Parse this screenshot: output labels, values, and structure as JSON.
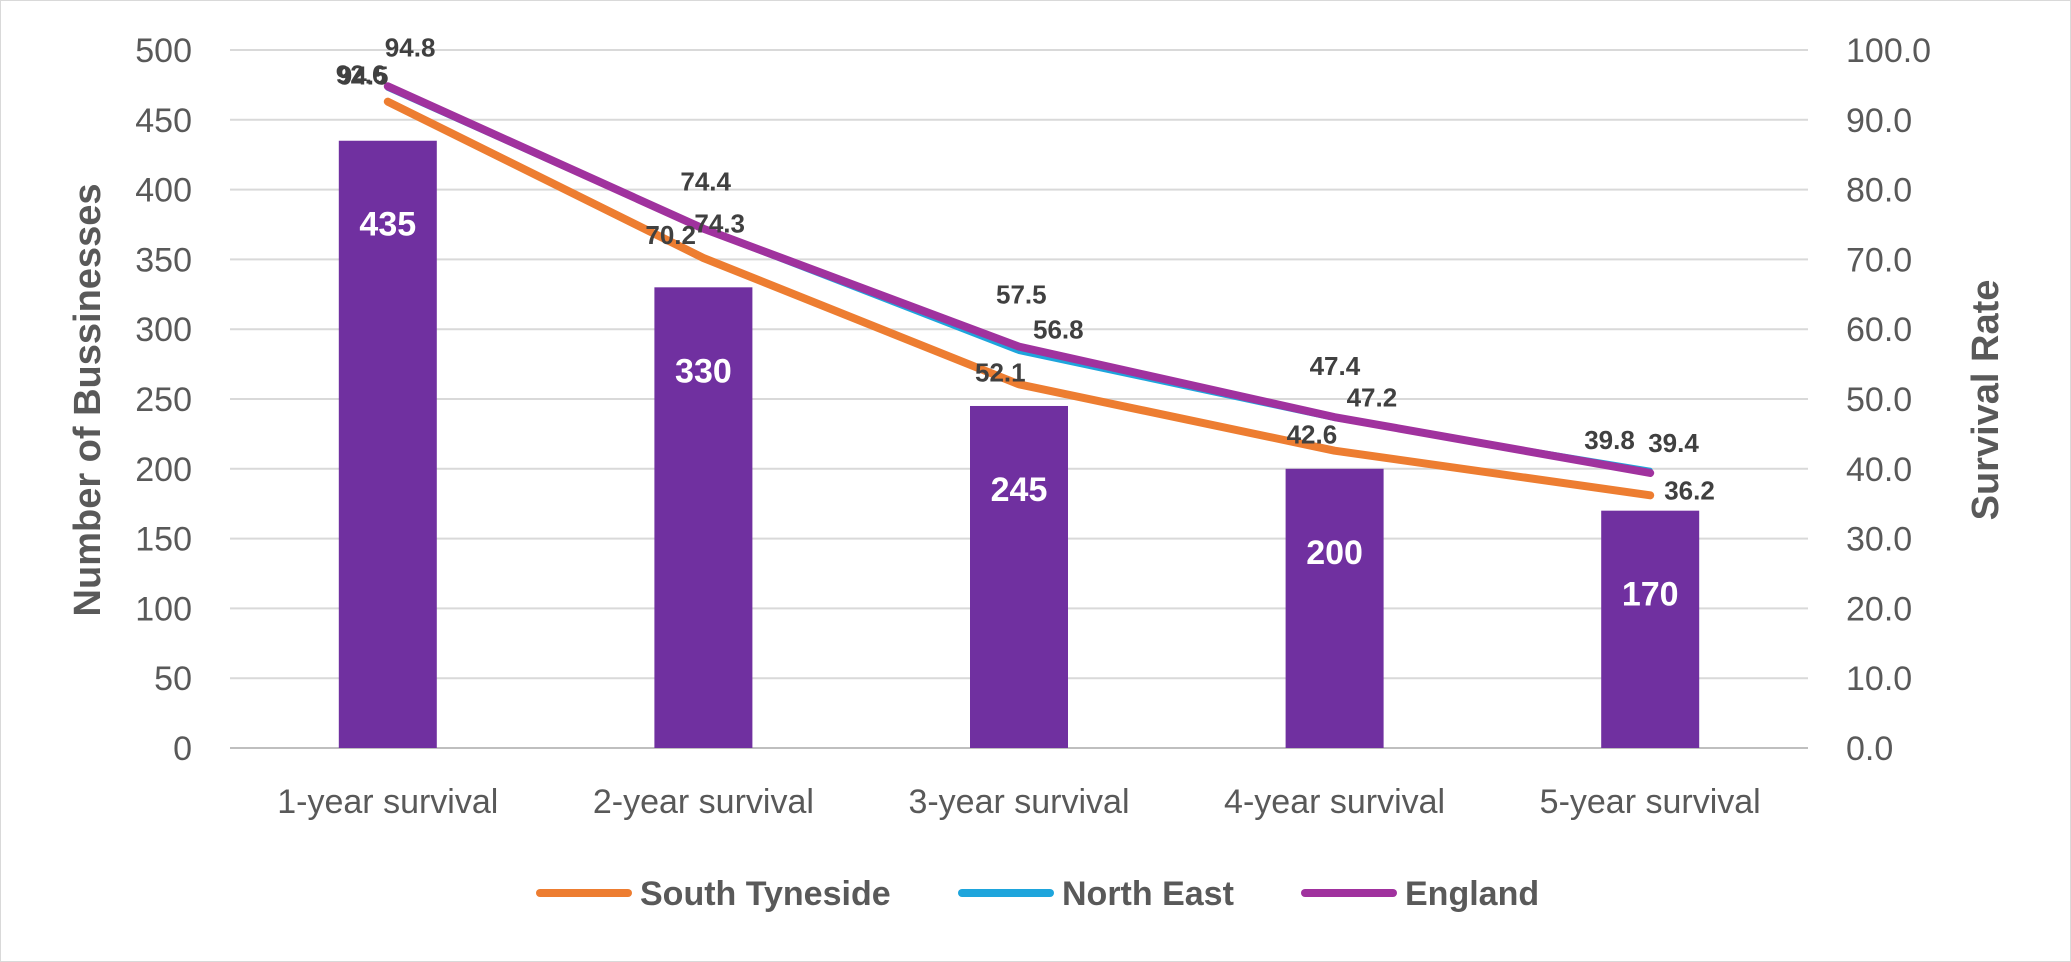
{
  "chart_data": {
    "type": "bar",
    "categories": [
      "1-year survival",
      "2-year survival",
      "3-year survival",
      "4-year survival",
      "5-year survival"
    ],
    "bars": {
      "axis": "left",
      "values": [
        435,
        330,
        245,
        200,
        170
      ],
      "color": "#7030a0"
    },
    "series": [
      {
        "name": "South Tyneside",
        "type": "line",
        "axis": "right",
        "values": [
          92.6,
          70.2,
          52.1,
          42.6,
          36.2
        ],
        "color": "#ed7d31"
      },
      {
        "name": "North East",
        "type": "line",
        "axis": "right",
        "values": [
          94.5,
          74.3,
          56.8,
          47.2,
          39.8
        ],
        "color": "#1ea5dc"
      },
      {
        "name": "England",
        "type": "line",
        "axis": "right",
        "values": [
          94.8,
          74.4,
          57.5,
          47.4,
          39.4
        ],
        "color": "#a0329e"
      }
    ],
    "ylabel": "Number of Bussinesses",
    "y2label": "Survival Rate",
    "ylim": [
      0,
      500
    ],
    "y2lim": [
      0,
      100
    ],
    "yticks": [
      "0",
      "50",
      "100",
      "150",
      "200",
      "250",
      "300",
      "350",
      "400",
      "450",
      "500"
    ],
    "y2ticks": [
      "0.0",
      "10.0",
      "20.0",
      "30.0",
      "40.0",
      "50.0",
      "60.0",
      "70.0",
      "80.0",
      "90.0",
      "100.0"
    ],
    "grid": true,
    "legend_position": "bottom"
  }
}
